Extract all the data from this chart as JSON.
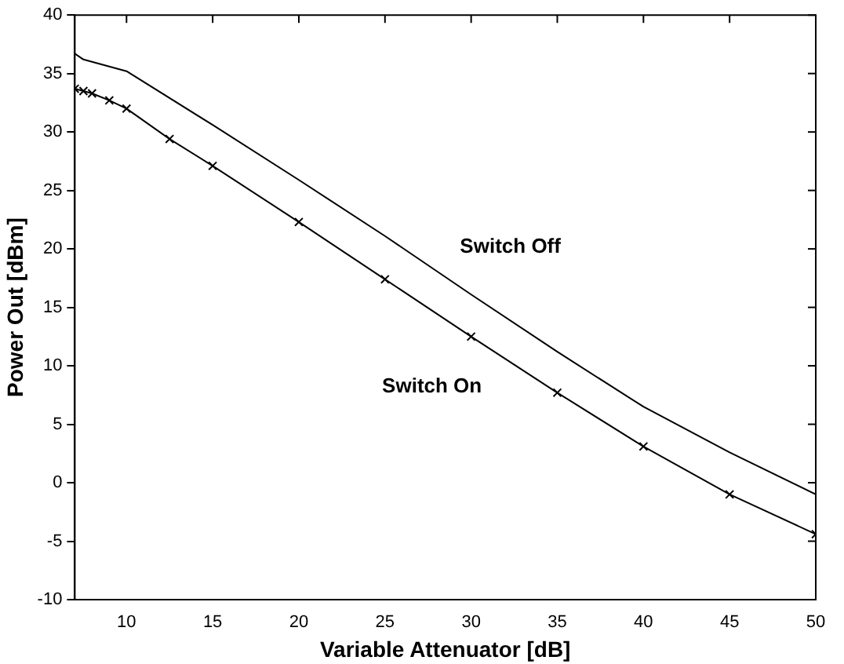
{
  "chart_data": {
    "type": "line",
    "xlabel": "Variable Attenuator [dB]",
    "ylabel": "Power Out [dBm]",
    "xlim": [
      7,
      50
    ],
    "xticks": [
      10,
      15,
      20,
      25,
      30,
      35,
      40,
      45,
      50
    ],
    "ylim": [
      -10,
      40
    ],
    "yticks": [
      -10,
      -5,
      0,
      5,
      10,
      15,
      20,
      25,
      30,
      35,
      40
    ],
    "grid": false,
    "legend": false,
    "line_style": "solid",
    "series": [
      {
        "name": "Switch Off",
        "color": "#000000",
        "marker": "none",
        "x": [
          7,
          7.5,
          10,
          15,
          20,
          25,
          30,
          35,
          40,
          45,
          50
        ],
        "values": [
          36.7,
          36.2,
          35.2,
          30.6,
          25.9,
          21.1,
          16.1,
          11.2,
          6.5,
          2.6,
          -1.0
        ]
      },
      {
        "name": "Switch On",
        "color": "#000000",
        "marker": "cross",
        "x": [
          7,
          7.5,
          8,
          9,
          10,
          12.5,
          15,
          20,
          25,
          30,
          35,
          40,
          45,
          50
        ],
        "values": [
          33.7,
          33.5,
          33.3,
          32.7,
          32.0,
          29.4,
          27.1,
          22.3,
          17.4,
          12.5,
          7.7,
          3.1,
          -1.0,
          -4.4
        ]
      }
    ]
  }
}
